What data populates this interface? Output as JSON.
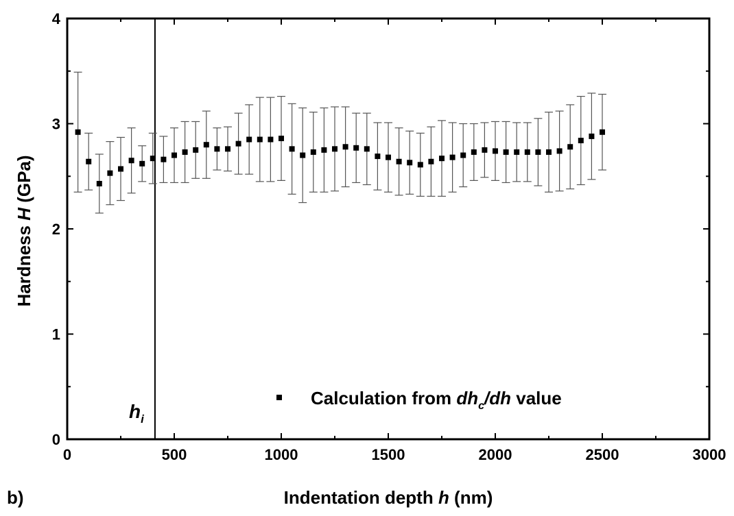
{
  "chart_data": {
    "type": "scatter",
    "panel_label": "b)",
    "xlabel": {
      "prefix": "Indentation depth ",
      "var": "h",
      "suffix": " (nm)"
    },
    "ylabel": {
      "prefix": "Hardness ",
      "var": "H",
      "suffix": " (GPa)"
    },
    "xlim": [
      0,
      3000
    ],
    "ylim": [
      0,
      4
    ],
    "xticks": [
      0,
      500,
      1000,
      1500,
      2000,
      2500,
      3000
    ],
    "yticks": [
      0,
      1,
      2,
      3,
      4
    ],
    "grid": false,
    "legend": {
      "placement": "bottom-right",
      "prefix": "Calculation from ",
      "var1": "dh",
      "sub": "c",
      "slash": "/",
      "var2": "dh",
      "suffix": " value"
    },
    "vertical_line": {
      "x": 410,
      "label": "h",
      "label_sub": "i"
    },
    "series": [
      {
        "marker": "square",
        "x": [
          50,
          100,
          150,
          200,
          250,
          300,
          350,
          400,
          450,
          500,
          550,
          600,
          650,
          700,
          750,
          800,
          850,
          900,
          950,
          1000,
          1050,
          1100,
          1150,
          1200,
          1250,
          1300,
          1350,
          1400,
          1450,
          1500,
          1550,
          1600,
          1650,
          1700,
          1750,
          1800,
          1850,
          1900,
          1950,
          2000,
          2050,
          2100,
          2150,
          2200,
          2250,
          2300,
          2350,
          2400,
          2450,
          2500
        ],
        "y": [
          2.92,
          2.64,
          2.43,
          2.53,
          2.57,
          2.65,
          2.62,
          2.67,
          2.66,
          2.7,
          2.73,
          2.75,
          2.8,
          2.76,
          2.76,
          2.81,
          2.85,
          2.85,
          2.85,
          2.86,
          2.76,
          2.7,
          2.73,
          2.75,
          2.76,
          2.78,
          2.77,
          2.76,
          2.69,
          2.68,
          2.64,
          2.63,
          2.61,
          2.64,
          2.67,
          2.68,
          2.7,
          2.73,
          2.75,
          2.74,
          2.73,
          2.73,
          2.73,
          2.73,
          2.73,
          2.74,
          2.78,
          2.84,
          2.88,
          2.92
        ],
        "err": [
          0.57,
          0.27,
          0.28,
          0.3,
          0.3,
          0.31,
          0.17,
          0.24,
          0.22,
          0.26,
          0.29,
          0.27,
          0.32,
          0.2,
          0.21,
          0.29,
          0.33,
          0.4,
          0.4,
          0.4,
          0.43,
          0.45,
          0.38,
          0.4,
          0.4,
          0.38,
          0.33,
          0.34,
          0.32,
          0.33,
          0.32,
          0.3,
          0.3,
          0.33,
          0.36,
          0.33,
          0.3,
          0.27,
          0.26,
          0.28,
          0.29,
          0.28,
          0.28,
          0.32,
          0.38,
          0.38,
          0.4,
          0.42,
          0.41,
          0.36
        ]
      }
    ]
  }
}
